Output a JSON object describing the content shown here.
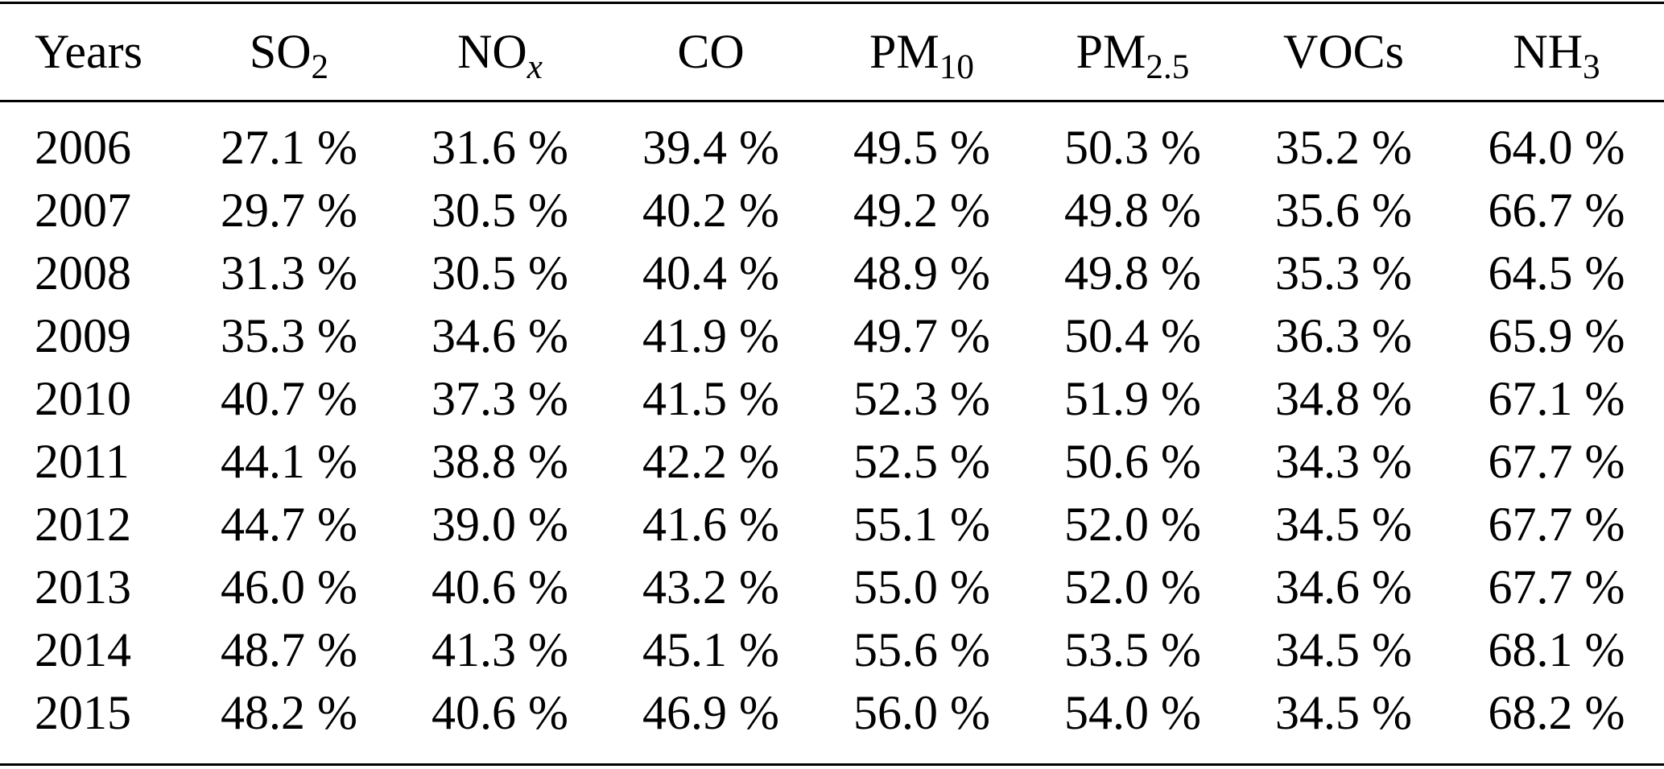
{
  "table": {
    "header": [
      {
        "base": "Years"
      },
      {
        "base": "SO",
        "sub": "2"
      },
      {
        "base": "NO",
        "sub": "x",
        "italic": true
      },
      {
        "base": "CO"
      },
      {
        "base": "PM",
        "sub": "10"
      },
      {
        "base": "PM",
        "sub": "2.5"
      },
      {
        "base": "VOCs"
      },
      {
        "base": "NH",
        "sub": "3"
      }
    ],
    "rows": [
      [
        "2006",
        "27.1 %",
        "31.6 %",
        "39.4 %",
        "49.5 %",
        "50.3 %",
        "35.2 %",
        "64.0 %"
      ],
      [
        "2007",
        "29.7 %",
        "30.5 %",
        "40.2 %",
        "49.2 %",
        "49.8 %",
        "35.6 %",
        "66.7 %"
      ],
      [
        "2008",
        "31.3 %",
        "30.5 %",
        "40.4 %",
        "48.9 %",
        "49.8 %",
        "35.3 %",
        "64.5 %"
      ],
      [
        "2009",
        "35.3 %",
        "34.6 %",
        "41.9 %",
        "49.7 %",
        "50.4 %",
        "36.3 %",
        "65.9 %"
      ],
      [
        "2010",
        "40.7 %",
        "37.3 %",
        "41.5 %",
        "52.3 %",
        "51.9 %",
        "34.8 %",
        "67.1 %"
      ],
      [
        "2011",
        "44.1 %",
        "38.8 %",
        "42.2 %",
        "52.5 %",
        "50.6 %",
        "34.3 %",
        "67.7 %"
      ],
      [
        "2012",
        "44.7 %",
        "39.0 %",
        "41.6 %",
        "55.1 %",
        "52.0 %",
        "34.5 %",
        "67.7 %"
      ],
      [
        "2013",
        "46.0 %",
        "40.6 %",
        "43.2 %",
        "55.0 %",
        "52.0 %",
        "34.6 %",
        "67.7 %"
      ],
      [
        "2014",
        "48.7 %",
        "41.3 %",
        "45.1 %",
        "55.6 %",
        "53.5 %",
        "34.5 %",
        "68.1 %"
      ],
      [
        "2015",
        "48.2 %",
        "40.6 %",
        "46.9 %",
        "56.0 %",
        "54.0 %",
        "34.5 %",
        "68.2 %"
      ]
    ]
  }
}
